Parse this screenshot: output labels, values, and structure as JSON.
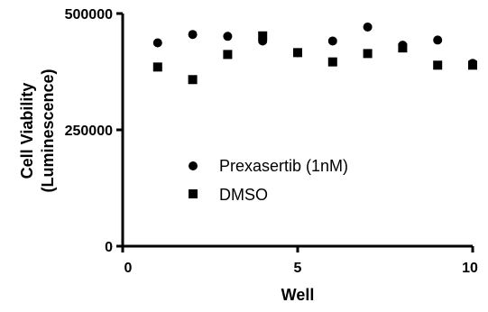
{
  "chart_data": {
    "type": "scatter",
    "xlabel": "Well",
    "ylabel_lines": [
      "Cell Viability",
      "(Luminescence)"
    ],
    "xlim": [
      0,
      10
    ],
    "ylim": [
      0,
      500000
    ],
    "x_ticks": [
      0,
      5,
      10
    ],
    "x_tick_labels": [
      "0",
      "5",
      "10"
    ],
    "y_ticks": [
      0,
      250000,
      500000
    ],
    "y_tick_labels": [
      "0",
      "250000",
      "500000"
    ],
    "grid": false,
    "legend_position": "center",
    "series": [
      {
        "name": "Prexasertib (1nM)",
        "marker": "circle",
        "color": "#000000",
        "x": [
          1,
          2,
          3,
          4,
          5,
          6,
          7,
          8,
          9,
          10
        ],
        "y": [
          437000,
          455000,
          451000,
          441000,
          416000,
          441000,
          471000,
          432000,
          443000,
          393000
        ]
      },
      {
        "name": "DMSO",
        "marker": "square",
        "color": "#000000",
        "x": [
          1,
          2,
          3,
          4,
          5,
          6,
          7,
          8,
          9,
          10
        ],
        "y": [
          385000,
          358000,
          412000,
          452000,
          416000,
          396000,
          414000,
          426000,
          389000,
          389000
        ]
      }
    ]
  }
}
